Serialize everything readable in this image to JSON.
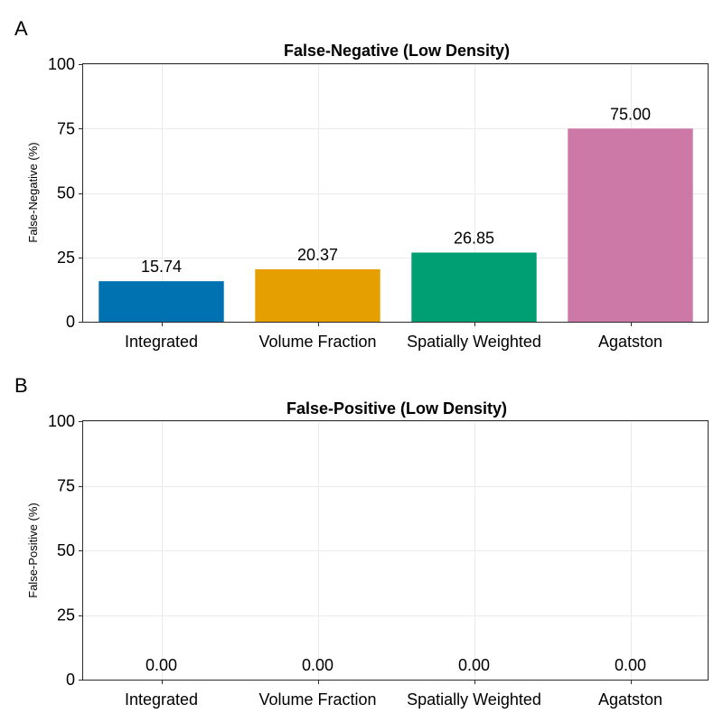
{
  "chart_data": [
    {
      "panel": "A",
      "type": "bar",
      "title": "False-Negative (Low Density)",
      "xlabel": "",
      "ylabel": "False-Negative (%)",
      "categories": [
        "Integrated",
        "Volume Fraction",
        "Spatially Weighted",
        "Agatston"
      ],
      "values": [
        15.74,
        20.37,
        26.85,
        75.0
      ],
      "value_labels": [
        "15.74",
        "20.37",
        "26.85",
        "75.00"
      ],
      "colors": [
        "#0072b2",
        "#e69f00",
        "#009e73",
        "#cc79a7"
      ],
      "ylim": [
        0,
        100
      ],
      "yticks": [
        0,
        25,
        50,
        75,
        100
      ],
      "ytick_labels": [
        "0",
        "25",
        "50",
        "75",
        "100"
      ],
      "grid": true,
      "legend": "none"
    },
    {
      "panel": "B",
      "type": "bar",
      "title": "False-Positive (Low Density)",
      "xlabel": "",
      "ylabel": "False-Positive (%)",
      "categories": [
        "Integrated",
        "Volume Fraction",
        "Spatially Weighted",
        "Agatston"
      ],
      "values": [
        0.0,
        0.0,
        0.0,
        0.0
      ],
      "value_labels": [
        "0.00",
        "0.00",
        "0.00",
        "0.00"
      ],
      "colors": [
        "#0072b2",
        "#e69f00",
        "#009e73",
        "#cc79a7"
      ],
      "ylim": [
        0,
        100
      ],
      "yticks": [
        0,
        25,
        50,
        75,
        100
      ],
      "ytick_labels": [
        "0",
        "25",
        "50",
        "75",
        "100"
      ],
      "grid": true,
      "legend": "none"
    }
  ]
}
